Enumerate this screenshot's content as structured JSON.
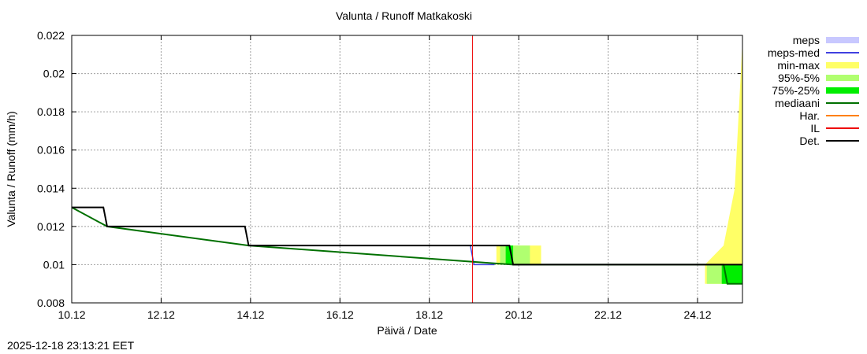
{
  "title": "Valunta / Runoff  Matkakoski",
  "timestamp": "2025-12-18 23:13:21 EET",
  "legend": [
    {
      "label": "meps",
      "kind": "box",
      "color": "#c8c8ff"
    },
    {
      "label": "meps-med",
      "kind": "line",
      "color": "#4040e0"
    },
    {
      "label": "min-max",
      "kind": "box",
      "color": "#ffff66"
    },
    {
      "label": "95%-5%",
      "kind": "box",
      "color": "#b0ff70"
    },
    {
      "label": "75%-25%",
      "kind": "box",
      "color": "#00ee00"
    },
    {
      "label": "mediaani",
      "kind": "line",
      "color": "#007000"
    },
    {
      "label": "Har.",
      "kind": "line",
      "color": "#ff8000"
    },
    {
      "label": "IL",
      "kind": "line",
      "color": "#ee0000"
    },
    {
      "label": "Det.",
      "kind": "line",
      "color": "#000000"
    }
  ],
  "chart_data": {
    "type": "line",
    "title": "Valunta / Runoff  Matkakoski",
    "xlabel": "Päivä / Date",
    "ylabel": "Valunta / Runoff (mm/h)",
    "x_tick_labels": [
      "10.12",
      "12.12",
      "14.12",
      "16.12",
      "18.12",
      "20.12",
      "22.12",
      "24.12"
    ],
    "y_tick_labels": [
      "0.008",
      "0.01",
      "0.012",
      "0.014",
      "0.016",
      "0.018",
      "0.02",
      "0.022"
    ],
    "xlim": [
      "10.12",
      "25.12"
    ],
    "ylim": [
      0.008,
      0.022
    ],
    "grid": true,
    "legend_position": "right, outside",
    "series": [
      {
        "name": "Det.",
        "color": "#000000",
        "points": [
          {
            "x": "10.12 00:00",
            "y": 0.013
          },
          {
            "x": "10.12 17:00",
            "y": 0.013
          },
          {
            "x": "10.12 19:00",
            "y": 0.012
          },
          {
            "x": "13.12 21:00",
            "y": 0.012
          },
          {
            "x": "13.12 23:00",
            "y": 0.011
          },
          {
            "x": "19.12 19:00",
            "y": 0.011
          },
          {
            "x": "19.12 21:00",
            "y": 0.01
          },
          {
            "x": "25.12 00:00",
            "y": 0.01
          }
        ]
      },
      {
        "name": "mediaani",
        "color": "#007000",
        "points": [
          {
            "x": "10.12 00:00",
            "y": 0.013
          },
          {
            "x": "10.12 19:00",
            "y": 0.012
          },
          {
            "x": "13.12 23:00",
            "y": 0.011
          },
          {
            "x": "19.12 21:00",
            "y": 0.01
          },
          {
            "x": "24.12 14:00",
            "y": 0.01
          },
          {
            "x": "24.12 16:00",
            "y": 0.009
          },
          {
            "x": "25.12 00:00",
            "y": 0.009
          }
        ]
      },
      {
        "name": "meps-med",
        "color": "#4040e0",
        "points": [
          {
            "x": "18.12 22:00",
            "y": 0.011
          },
          {
            "x": "19.00",
            "y": 0.01
          },
          {
            "x": "19.12 11:00",
            "y": 0.01
          }
        ]
      },
      {
        "name": "IL",
        "color": "#ee0000",
        "vertical_line_at": "18.12 23:13"
      },
      {
        "name": "min-max",
        "color": "#ffff66",
        "band": [
          {
            "x": "19.12 12:00",
            "low": 0.01,
            "high": 0.011
          },
          {
            "x": "20.12 12:00",
            "low": 0.01,
            "high": 0.011
          },
          {
            "x": "24.12 04:00",
            "low": 0.009,
            "high": 0.01
          },
          {
            "x": "24.12 14:00",
            "low": 0.009,
            "high": 0.011
          },
          {
            "x": "24.12 20:00",
            "low": 0.009,
            "high": 0.014
          },
          {
            "x": "25.12 00:00",
            "low": 0.009,
            "high": 0.0215
          }
        ]
      },
      {
        "name": "95%-5%",
        "color": "#b0ff70",
        "band": [
          {
            "x": "19.12 14:00",
            "low": 0.01,
            "high": 0.011
          },
          {
            "x": "20.12 06:00",
            "low": 0.01,
            "high": 0.011
          },
          {
            "x": "24.12 05:00",
            "low": 0.009,
            "high": 0.01
          },
          {
            "x": "25.12 00:00",
            "low": 0.009,
            "high": 0.01
          }
        ]
      },
      {
        "name": "75%-25%",
        "color": "#00ee00",
        "band": [
          {
            "x": "19.12 17:00",
            "low": 0.01,
            "high": 0.011
          },
          {
            "x": "19.12 21:00",
            "low": 0.01,
            "high": 0.011
          },
          {
            "x": "24.12 13:00",
            "low": 0.009,
            "high": 0.01
          },
          {
            "x": "25.12 00:00",
            "low": 0.009,
            "high": 0.01
          }
        ]
      }
    ]
  }
}
